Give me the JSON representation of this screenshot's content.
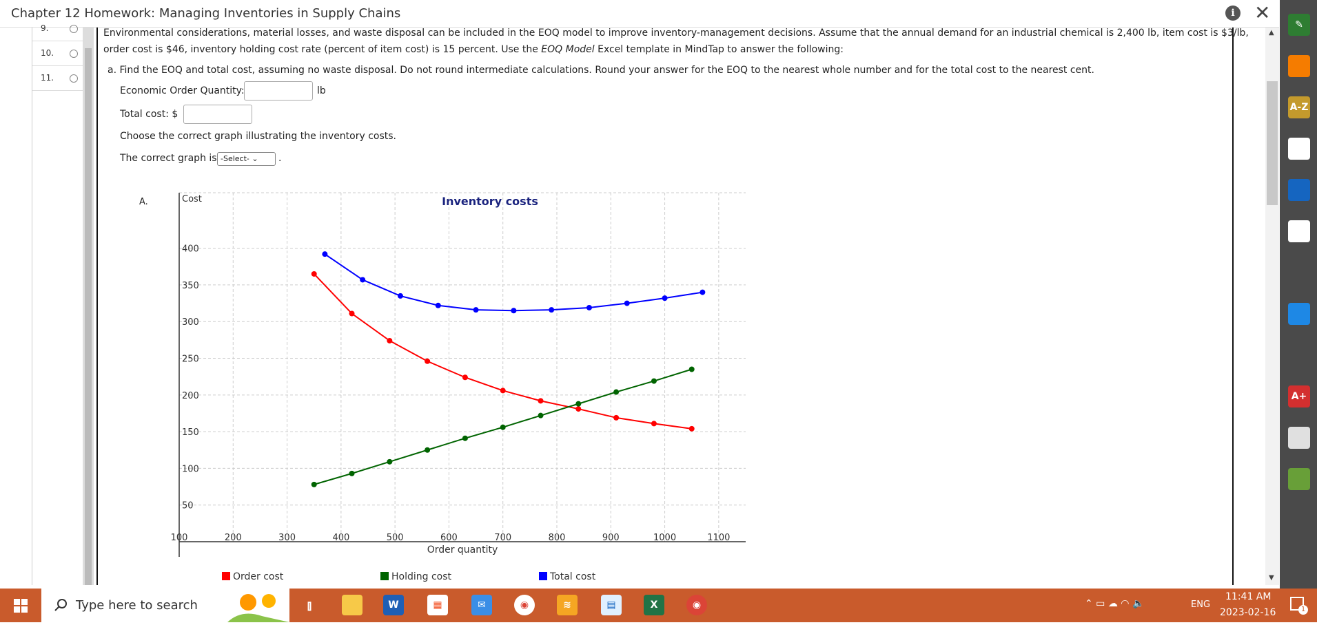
{
  "window": {
    "title": "Chapter 12 Homework: Managing Inventories in Supply Chains"
  },
  "questions": [
    {
      "num": "9."
    },
    {
      "num": "10."
    },
    {
      "num": "11."
    }
  ],
  "problem": {
    "line1": "Environmental considerations, material losses, and waste disposal can be included in the EOQ model to improve inventory-management decisions. Assume that the annual demand for an industrial chemical is 2,400 lb, item cost is $3/lb,",
    "line2_a": "order cost is $46, inventory holding cost rate (percent of item cost) is 15 percent. Use the ",
    "line2_em": "EOQ Model",
    "line2_b": " Excel template in MindTap to answer the following:",
    "part_a": "a. Find the EOQ and total cost, assuming no waste disposal. Do not round intermediate calculations. Round your answer for the EOQ to the nearest whole number and for the total cost to the nearest cent.",
    "eoq_label": "Economic Order Quantity:",
    "eoq_unit": "lb",
    "eoq_value": "",
    "total_label": "Total cost: $",
    "total_value": "",
    "choose_text": "Choose the correct graph illustrating the inventory costs.",
    "graph_prefix": "The correct graph is",
    "graph_select": "-Select-",
    "graph_suffix": "."
  },
  "option_label": "A.",
  "chart_data": {
    "type": "line",
    "title": "Inventory costs",
    "xlabel": "Order quantity",
    "ylabel": "Cost",
    "xlim": [
      100,
      1150
    ],
    "ylim": [
      0,
      440
    ],
    "xticks": [
      100,
      200,
      300,
      400,
      500,
      600,
      700,
      800,
      900,
      1000,
      1100
    ],
    "yticks": [
      50,
      100,
      150,
      200,
      250,
      300,
      350,
      400
    ],
    "grid": true,
    "legend": "bottom",
    "series": [
      {
        "name": "Order cost",
        "color": "#ff0000",
        "x": [
          350,
          420,
          490,
          560,
          630,
          700,
          770,
          840,
          910,
          980,
          1050
        ],
        "y": [
          365,
          311,
          274,
          246,
          224,
          206,
          192,
          181,
          169,
          161,
          154
        ]
      },
      {
        "name": "Holding cost",
        "color": "#006400",
        "x": [
          350,
          420,
          490,
          560,
          630,
          700,
          770,
          840,
          910,
          980,
          1050
        ],
        "y": [
          78,
          93,
          109,
          125,
          141,
          156,
          172,
          188,
          204,
          219,
          235
        ]
      },
      {
        "name": "Total cost",
        "color": "#0000ff",
        "x": [
          370,
          440,
          510,
          580,
          650,
          720,
          790,
          860,
          930,
          1000,
          1070
        ],
        "y": [
          392,
          357,
          335,
          322,
          316,
          315,
          316,
          319,
          325,
          332,
          340
        ]
      }
    ]
  },
  "sidebar_icons": [
    {
      "name": "pencil-icon",
      "label": "✎",
      "color": "#2e7d32"
    },
    {
      "name": "rss-icon",
      "label": "",
      "color": "#f57c00"
    },
    {
      "name": "az-dictionary-icon",
      "label": "A-Z",
      "color": "#c49a2c"
    },
    {
      "name": "office-icon",
      "label": "",
      "color": "#ffffff"
    },
    {
      "name": "book-icon",
      "label": "",
      "color": "#1565c0"
    },
    {
      "name": "notes-icon",
      "label": "",
      "color": "#ffffff"
    },
    {
      "name": "readspeaker-icon",
      "label": "",
      "color": "#4a4a4a"
    },
    {
      "name": "onedrive-icon",
      "label": "",
      "color": "#1e88e5"
    },
    {
      "name": "google-drive-icon",
      "label": "",
      "color": "#4a4a4a"
    },
    {
      "name": "aplus-icon",
      "label": "A+",
      "color": "#d32f2f"
    },
    {
      "name": "notebook-icon",
      "label": "",
      "color": "#e0e0e0"
    },
    {
      "name": "circle-progress-icon",
      "label": "",
      "color": "#689f38"
    }
  ],
  "taskbar": {
    "search_placeholder": "Type here to search",
    "time": "11:41 AM",
    "date": "2023-02-16",
    "lang": "ENG",
    "notif_count": "1"
  }
}
